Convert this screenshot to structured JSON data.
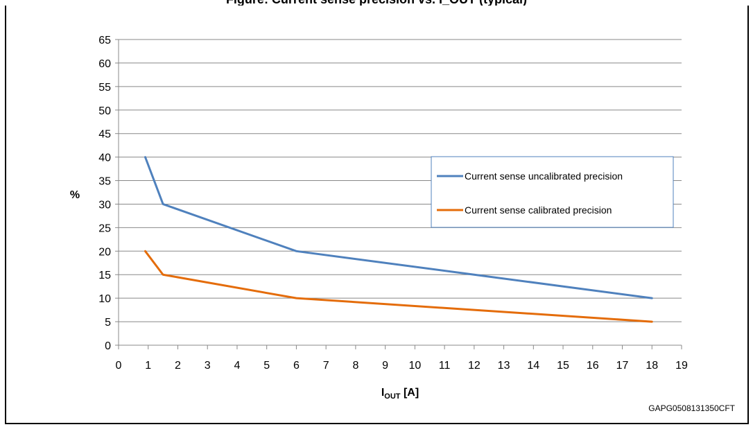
{
  "chart_data": {
    "type": "line",
    "title": "Figure: Current sense precision vs. I_OUT (typical)",
    "xlabel_main": "I",
    "xlabel_sub": "OUT",
    "xlabel_unit": " [A]",
    "ylabel": "%",
    "xlim": [
      0,
      19
    ],
    "ylim": [
      0,
      65
    ],
    "x_ticks": [
      0,
      1,
      2,
      3,
      4,
      5,
      6,
      7,
      8,
      9,
      10,
      11,
      12,
      13,
      14,
      15,
      16,
      17,
      18,
      19
    ],
    "y_ticks": [
      0,
      5,
      10,
      15,
      20,
      25,
      30,
      35,
      40,
      45,
      50,
      55,
      60,
      65
    ],
    "grid": true,
    "legend_position": "right",
    "series": [
      {
        "name": "Current sense uncalibrated precision",
        "color": "#4f81bd",
        "x": [
          0.9,
          1.5,
          6,
          12,
          18
        ],
        "y": [
          40,
          30,
          20,
          15,
          10
        ]
      },
      {
        "name": "Current sense calibrated precision",
        "color": "#e46c0a",
        "x": [
          0.9,
          1.5,
          6,
          12,
          18
        ],
        "y": [
          20,
          15,
          10,
          7.5,
          5
        ]
      }
    ]
  },
  "figure_code": "GAPG0508131350CFT"
}
